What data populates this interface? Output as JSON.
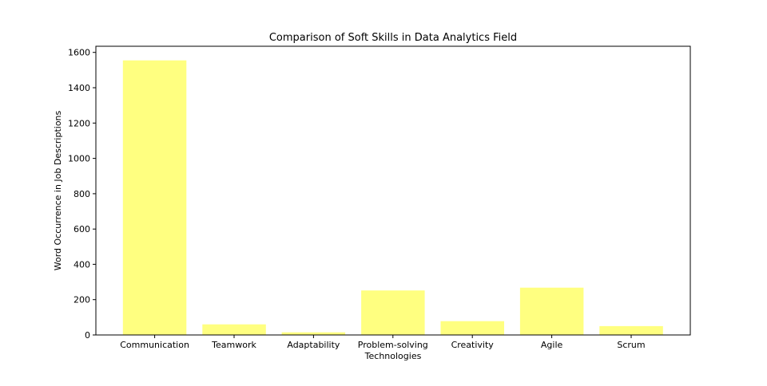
{
  "chart_data": {
    "type": "bar",
    "title": "Comparison of Soft Skills in Data Analytics Field",
    "xlabel": "Technologies",
    "ylabel": "Word Occurrence in Job Descriptions",
    "categories": [
      "Communication",
      "Teamwork",
      "Adaptability",
      "Problem-solving",
      "Creativity",
      "Agile",
      "Scrum"
    ],
    "values": [
      1555,
      60,
      15,
      252,
      78,
      268,
      50
    ],
    "ylim": [
      0,
      1600
    ],
    "yticks": [
      0,
      200,
      400,
      600,
      800,
      1000,
      1200,
      1400,
      1600
    ],
    "grid": false,
    "bar_color": "#ffff80",
    "axis_color": "#000000"
  }
}
